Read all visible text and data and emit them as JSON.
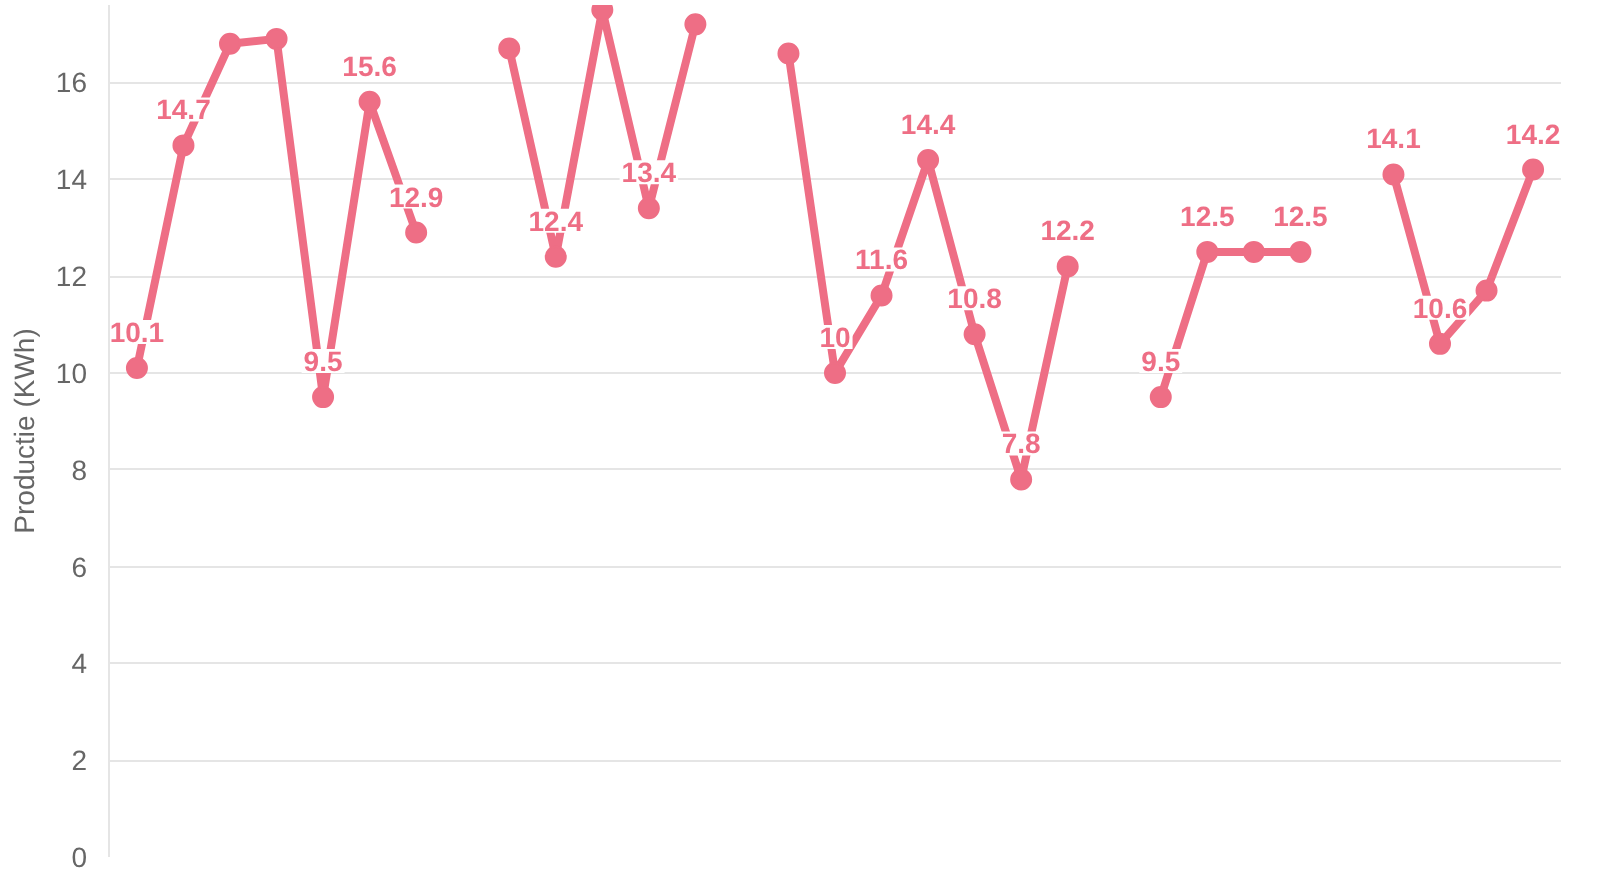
{
  "chart_data": {
    "type": "line",
    "ylabel": "Productie (KWh)",
    "categories": [
      null,
      null,
      null,
      null,
      null,
      null,
      null,
      null,
      null,
      null,
      null,
      null,
      null,
      null,
      null,
      null,
      null,
      null,
      null,
      null,
      null,
      null,
      null,
      null,
      null,
      null,
      null,
      null,
      null,
      null,
      null
    ],
    "series": [
      {
        "color": "#ee6e85",
        "values": [
          10.1,
          14.7,
          16.8,
          16.9,
          9.5,
          15.6,
          12.9,
          null,
          16.7,
          12.4,
          17.5,
          13.4,
          17.2,
          null,
          16.6,
          10,
          11.6,
          14.4,
          10.8,
          7.8,
          12.2,
          null,
          9.5,
          12.5,
          12.5,
          12.5,
          null,
          14.1,
          10.6,
          11.7,
          14.2
        ],
        "value_labels": [
          "10.1",
          "14.7",
          null,
          null,
          "9.5",
          "15.6",
          "12.9",
          null,
          null,
          "12.4",
          null,
          "13.4",
          null,
          null,
          null,
          "10",
          "11.6",
          "14.4",
          "10.8",
          "7.8",
          "12.2",
          null,
          "9.5",
          "12.5",
          null,
          "12.5",
          null,
          "14.1",
          "10.6",
          null,
          "14.2"
        ]
      }
    ],
    "ylim": [
      0,
      17.6
    ],
    "yticks": [
      0,
      2,
      4,
      6,
      8,
      10,
      12,
      14,
      16
    ],
    "grid": "y",
    "marker": "circle",
    "line_style": "solid"
  }
}
